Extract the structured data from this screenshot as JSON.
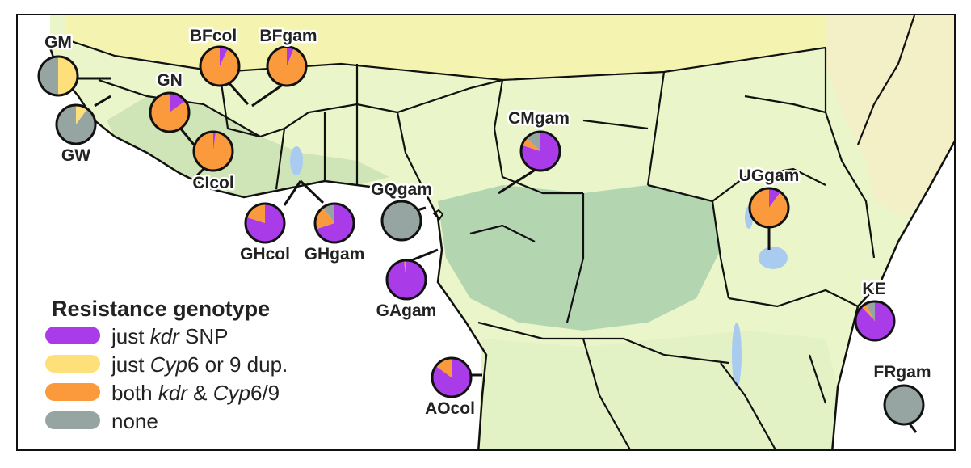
{
  "colors": {
    "kdr": "#A93BE8",
    "cyp": "#FDE07A",
    "both": "#FB9A3D",
    "none": "#97A5A2",
    "ocean": "#ffffff",
    "land_light": "#EAF5C9",
    "land_mid": "#D6EBB8",
    "forest": "#B3D6B1",
    "desert": "#F4F3B0",
    "water": "#A9CBEF"
  },
  "legend": {
    "title": "Resistance genotype",
    "items": [
      {
        "key": "kdr",
        "parts": [
          {
            "t": "just ",
            "i": false
          },
          {
            "t": "kdr",
            "i": true
          },
          {
            "t": " SNP",
            "i": false
          }
        ]
      },
      {
        "key": "cyp",
        "parts": [
          {
            "t": "just ",
            "i": false
          },
          {
            "t": "Cyp",
            "i": true
          },
          {
            "t": "6 or 9 dup.",
            "i": false
          }
        ]
      },
      {
        "key": "both",
        "parts": [
          {
            "t": "both ",
            "i": false
          },
          {
            "t": "kdr",
            "i": true
          },
          {
            "t": " & ",
            "i": false
          },
          {
            "t": "Cyp",
            "i": true
          },
          {
            "t": "6/9",
            "i": false
          }
        ]
      },
      {
        "key": "none",
        "parts": [
          {
            "t": "none",
            "i": false
          }
        ]
      }
    ]
  },
  "populations": [
    {
      "name": "GM",
      "fractions": {
        "kdr": 0,
        "cyp": 0.5,
        "both": 0,
        "none": 0.5
      }
    },
    {
      "name": "GW",
      "fractions": {
        "kdr": 0,
        "cyp": 0.1,
        "both": 0,
        "none": 0.9
      }
    },
    {
      "name": "BFcol",
      "fractions": {
        "kdr": 0.07,
        "cyp": 0,
        "both": 0.93,
        "none": 0
      }
    },
    {
      "name": "BFgam",
      "fractions": {
        "kdr": 0.06,
        "cyp": 0,
        "both": 0.94,
        "none": 0
      }
    },
    {
      "name": "GN",
      "fractions": {
        "kdr": 0.15,
        "cyp": 0,
        "both": 0.85,
        "none": 0
      }
    },
    {
      "name": "CIcol",
      "fractions": {
        "kdr": 0.02,
        "cyp": 0,
        "both": 0.98,
        "none": 0
      }
    },
    {
      "name": "GHcol",
      "fractions": {
        "kdr": 0.8,
        "cyp": 0,
        "both": 0.2,
        "none": 0
      }
    },
    {
      "name": "GHgam",
      "fractions": {
        "kdr": 0.7,
        "cyp": 0,
        "both": 0.2,
        "none": 0.1
      }
    },
    {
      "name": "GQgam",
      "fractions": {
        "kdr": 0,
        "cyp": 0,
        "both": 0,
        "none": 1
      }
    },
    {
      "name": "GAgam",
      "fractions": {
        "kdr": 0.98,
        "cyp": 0,
        "both": 0.02,
        "none": 0
      }
    },
    {
      "name": "CMgam",
      "fractions": {
        "kdr": 0.8,
        "cyp": 0,
        "both": 0.07,
        "none": 0.13
      }
    },
    {
      "name": "AOcol",
      "fractions": {
        "kdr": 0.85,
        "cyp": 0,
        "both": 0.15,
        "none": 0
      }
    },
    {
      "name": "UGgam",
      "fractions": {
        "kdr": 0.1,
        "cyp": 0,
        "both": 0.9,
        "none": 0
      }
    },
    {
      "name": "KE",
      "fractions": {
        "kdr": 0.88,
        "cyp": 0,
        "both": 0.04,
        "none": 0.08
      }
    },
    {
      "name": "FRgam",
      "fractions": {
        "kdr": 0,
        "cyp": 0,
        "both": 0,
        "none": 1
      }
    }
  ]
}
